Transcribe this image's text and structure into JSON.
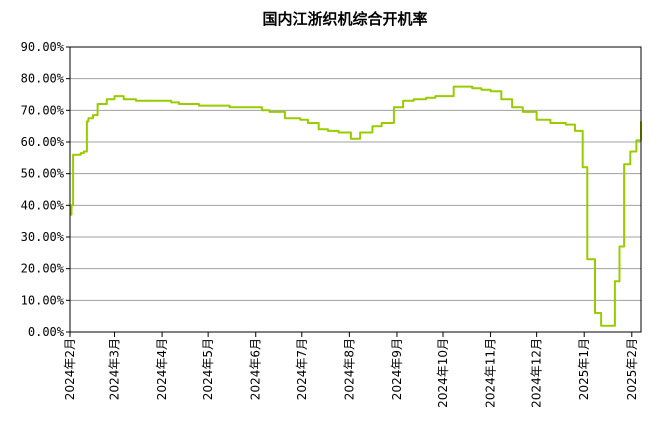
{
  "chart_data": {
    "type": "line",
    "title": "国内江浙织机综合开机率",
    "xlabel": "",
    "ylabel": "",
    "ylim": [
      0,
      90
    ],
    "y_ticks": [
      "90.00%",
      "80.00%",
      "70.00%",
      "60.00%",
      "50.00%",
      "40.00%",
      "30.00%",
      "20.00%",
      "10.00%",
      "0.00%"
    ],
    "x_ticks": [
      "2024年2月",
      "2024年3月",
      "2024年4月",
      "2024年5月",
      "2024年6月",
      "2024年7月",
      "2024年8月",
      "2024年9月",
      "2024年10月",
      "2024年11月",
      "2024年12月",
      "2025年1月",
      "2025年2月"
    ],
    "grid": true,
    "line_color": "#99cc00",
    "series": [
      {
        "name": "",
        "x": [
          "2024-02-01",
          "2024-02-02",
          "2024-02-03",
          "2024-02-08",
          "2024-02-10",
          "2024-02-12",
          "2024-02-13",
          "2024-02-16",
          "2024-02-19",
          "2024-02-21",
          "2024-02-25",
          "2024-03-01",
          "2024-03-07",
          "2024-03-10",
          "2024-03-15",
          "2024-03-22",
          "2024-04-01",
          "2024-04-07",
          "2024-04-12",
          "2024-04-18",
          "2024-04-25",
          "2024-05-01",
          "2024-05-10",
          "2024-05-15",
          "2024-05-20",
          "2024-06-01",
          "2024-06-05",
          "2024-06-10",
          "2024-06-20",
          "2024-06-30",
          "2024-07-05",
          "2024-07-12",
          "2024-07-18",
          "2024-07-25",
          "2024-08-02",
          "2024-08-08",
          "2024-08-16",
          "2024-08-22",
          "2024-08-30",
          "2024-09-05",
          "2024-09-12",
          "2024-09-20",
          "2024-09-26",
          "2024-10-02",
          "2024-10-08",
          "2024-10-15",
          "2024-10-20",
          "2024-10-26",
          "2024-11-01",
          "2024-11-08",
          "2024-11-15",
          "2024-11-22",
          "2024-12-01",
          "2024-12-10",
          "2024-12-20",
          "2024-12-26",
          "2024-12-31",
          "2025-01-03",
          "2025-01-08",
          "2025-01-12",
          "2025-01-18",
          "2025-01-21",
          "2025-01-24",
          "2025-01-27",
          "2025-01-31",
          "2025-02-04",
          "2025-02-07"
        ],
        "y": [
          37.0,
          40.0,
          56.0,
          56.5,
          57.0,
          66.5,
          67.5,
          68.5,
          72.0,
          72.0,
          73.5,
          74.5,
          73.5,
          73.5,
          73.0,
          73.0,
          73.0,
          72.5,
          72.0,
          72.0,
          71.5,
          71.5,
          71.5,
          71.0,
          71.0,
          71.0,
          70.0,
          69.5,
          67.5,
          67.0,
          66.0,
          64.0,
          63.5,
          63.0,
          61.0,
          63.0,
          65.0,
          66.0,
          71.0,
          73.0,
          73.5,
          74.0,
          74.5,
          74.5,
          77.5,
          77.5,
          77.0,
          76.5,
          76.0,
          73.5,
          71.0,
          69.5,
          67.0,
          66.0,
          65.5,
          63.5,
          52.0,
          23.0,
          6.0,
          2.0,
          2.0,
          16.0,
          27.0,
          53.0,
          57.0,
          60.5,
          66.5
        ]
      }
    ]
  }
}
